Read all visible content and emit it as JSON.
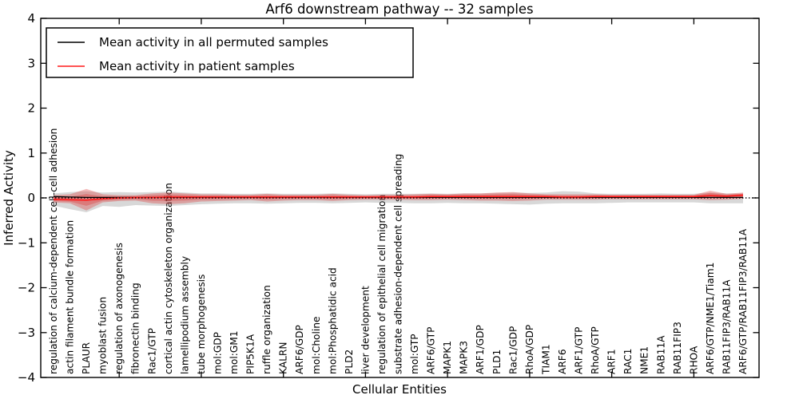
{
  "figure": {
    "title": "Arf6 downstream pathway -- 32 samples",
    "background": "#ffffff"
  },
  "legend": {
    "items": [
      {
        "label": "Mean activity in all permuted samples",
        "color": "#000000"
      },
      {
        "label": "Mean activity in patient samples",
        "color": "#ff1a1a"
      }
    ]
  },
  "chart_data": {
    "type": "line",
    "title": "Arf6 downstream pathway -- 32 samples",
    "xlabel": "Cellular Entities",
    "ylabel": "Inferred Activity",
    "ylim": [
      -4,
      4
    ],
    "grid": false,
    "legend_position": "upper left",
    "y_tick_values": [
      4,
      3,
      2,
      1,
      0,
      -1,
      -2,
      -3,
      -4
    ],
    "y_tick_labels": [
      "4",
      "3",
      "2",
      "1",
      "0",
      "−1",
      "−2",
      "−3",
      "−4"
    ],
    "x_major_ticks": [
      5,
      10,
      15,
      20,
      25,
      30,
      35,
      40
    ],
    "reference_line": {
      "y": 0,
      "style": "dotted",
      "color": "#000000"
    },
    "categories": [
      "regulation of calcium-dependent cell-cell adhesion",
      "actin filament bundle formation",
      "PLAUR",
      "myoblast fusion",
      "regulation of axonogenesis",
      "fibronectin binding",
      "Rac1/GTP",
      "cortical actin cytoskeleton organization",
      "lamellipodium assembly",
      "tube morphogenesis",
      "mol:GDP",
      "mol:GM1",
      "PIP5K1A",
      "ruffle organization",
      "KALRN",
      "ARF6/GDP",
      "mol:Choline",
      "mol:Phosphatidic acid",
      "PLD2",
      "liver development",
      "regulation of epithelial cell migration",
      "substrate adhesion-dependent cell spreading",
      "mol:GTP",
      "ARF6/GTP",
      "MAPK1",
      "MAPK3",
      "ARF1/GDP",
      "PLD1",
      "Rac1/GDP",
      "RhoA/GDP",
      "TIAM1",
      "ARF6",
      "ARF1/GTP",
      "RhoA/GTP",
      "ARF1",
      "RAC1",
      "NME1",
      "RAB11A",
      "RAB11FIP3",
      "RHOA",
      "ARF6/GTP/NME1/Tiam1",
      "RAB11FIP3/RAB11A",
      "ARF6/GTP/RAB11FIP3/RAB11A"
    ],
    "series": [
      {
        "name": "Mean activity in all permuted samples",
        "color": "#000000",
        "line_width": 1.3,
        "band_color": "rgba(125,125,125,0.30)",
        "band_layered": false,
        "values": [
          0.03,
          0.02,
          0.01,
          0.01,
          0.01,
          0.01,
          0.01,
          0.01,
          0.01,
          0.01,
          0.01,
          0.01,
          0.01,
          0.01,
          0.01,
          0.01,
          0.01,
          0.01,
          0.01,
          0.01,
          0.01,
          0.01,
          0.01,
          0.01,
          0.01,
          0.01,
          0.01,
          0.01,
          0.01,
          0.01,
          0.01,
          0.01,
          0.01,
          0.01,
          0.01,
          0.01,
          0.01,
          0.01,
          0.01,
          0.01,
          0.01,
          0.01,
          0.01
        ],
        "band_upper": [
          0.1,
          0.13,
          0.15,
          0.12,
          0.13,
          0.12,
          0.13,
          0.14,
          0.12,
          0.1,
          0.1,
          0.09,
          0.09,
          0.1,
          0.09,
          0.09,
          0.09,
          0.1,
          0.09,
          0.08,
          0.09,
          0.09,
          0.09,
          0.1,
          0.09,
          0.1,
          0.1,
          0.11,
          0.12,
          0.11,
          0.12,
          0.15,
          0.14,
          0.1,
          0.09,
          0.09,
          0.09,
          0.1,
          0.09,
          0.09,
          0.12,
          0.1,
          0.1
        ],
        "band_lower": [
          -0.17,
          -0.25,
          -0.32,
          -0.18,
          -0.2,
          -0.16,
          -0.17,
          -0.18,
          -0.16,
          -0.14,
          -0.13,
          -0.12,
          -0.12,
          -0.13,
          -0.12,
          -0.11,
          -0.11,
          -0.12,
          -0.11,
          -0.1,
          -0.11,
          -0.11,
          -0.12,
          -0.12,
          -0.11,
          -0.12,
          -0.12,
          -0.13,
          -0.14,
          -0.15,
          -0.13,
          -0.12,
          -0.12,
          -0.12,
          -0.11,
          -0.1,
          -0.1,
          -0.1,
          -0.1,
          -0.1,
          -0.12,
          -0.12,
          -0.12
        ]
      },
      {
        "name": "Mean activity in patient samples",
        "color": "#ff1a1a",
        "line_width": 1.6,
        "band_color": "rgba(221,45,45,0.33)",
        "band_layered": true,
        "values": [
          -0.03,
          -0.04,
          -0.05,
          -0.02,
          0.0,
          0.01,
          0.01,
          0.02,
          0.02,
          0.02,
          0.02,
          0.02,
          0.02,
          0.02,
          0.02,
          0.02,
          0.02,
          0.02,
          0.02,
          0.02,
          0.02,
          0.02,
          0.02,
          0.03,
          0.03,
          0.03,
          0.03,
          0.03,
          0.03,
          0.03,
          0.03,
          0.02,
          0.02,
          0.03,
          0.03,
          0.03,
          0.03,
          0.03,
          0.03,
          0.03,
          0.05,
          0.04,
          0.06
        ],
        "band_upper": [
          0.06,
          0.08,
          0.2,
          0.08,
          0.06,
          0.06,
          0.1,
          0.12,
          0.1,
          0.08,
          0.08,
          0.07,
          0.07,
          0.09,
          0.07,
          0.07,
          0.07,
          0.09,
          0.07,
          0.06,
          0.07,
          0.07,
          0.08,
          0.09,
          0.08,
          0.1,
          0.1,
          0.12,
          0.13,
          0.1,
          0.08,
          0.08,
          0.08,
          0.08,
          0.07,
          0.07,
          0.07,
          0.07,
          0.07,
          0.07,
          0.16,
          0.09,
          0.12
        ],
        "band_lower": [
          -0.1,
          -0.12,
          -0.28,
          -0.1,
          -0.07,
          -0.06,
          -0.12,
          -0.14,
          -0.12,
          -0.08,
          -0.07,
          -0.06,
          -0.05,
          -0.08,
          -0.06,
          -0.05,
          -0.05,
          -0.07,
          -0.05,
          -0.04,
          -0.04,
          -0.04,
          -0.05,
          -0.05,
          -0.04,
          -0.05,
          -0.06,
          -0.06,
          -0.07,
          -0.06,
          -0.04,
          -0.04,
          -0.04,
          -0.04,
          -0.03,
          -0.03,
          -0.03,
          -0.03,
          -0.03,
          -0.03,
          -0.05,
          -0.04,
          -0.02
        ]
      }
    ]
  }
}
